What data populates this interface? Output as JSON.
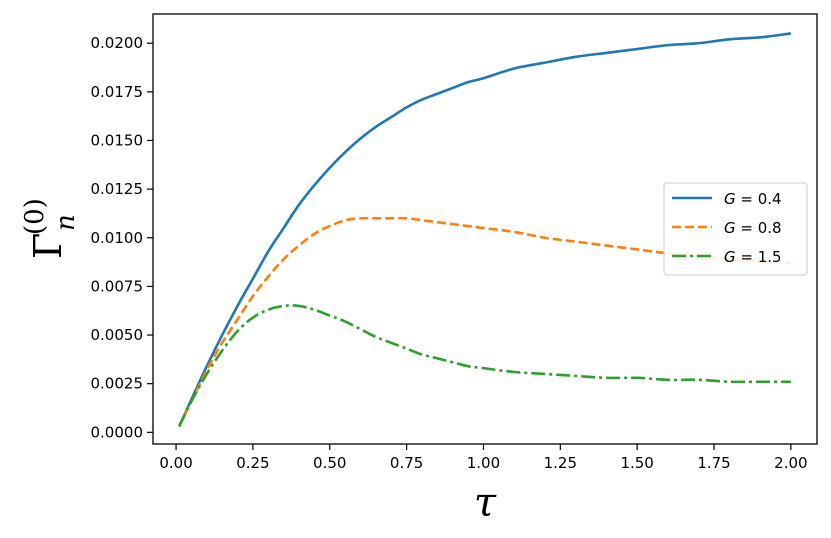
{
  "chart_data": {
    "type": "line",
    "xlabel": "τ",
    "ylabel_main": "Γ",
    "ylabel_sub": "n",
    "ylabel_sup": "(0)",
    "xlim": [
      -0.075,
      2.085
    ],
    "ylim": [
      -0.0006,
      0.0215
    ],
    "xticks": [
      0.0,
      0.25,
      0.5,
      0.75,
      1.0,
      1.25,
      1.5,
      1.75,
      2.0
    ],
    "xtick_labels": [
      "0.00",
      "0.25",
      "0.50",
      "0.75",
      "1.00",
      "1.25",
      "1.50",
      "1.75",
      "2.00"
    ],
    "yticks": [
      0.0,
      0.0025,
      0.005,
      0.0075,
      0.01,
      0.0125,
      0.015,
      0.0175,
      0.02
    ],
    "ytick_labels": [
      "0.0000",
      "0.0025",
      "0.0050",
      "0.0075",
      "0.0100",
      "0.0125",
      "0.0150",
      "0.0175",
      "0.0200"
    ],
    "grid": false,
    "legend_position": "center-right",
    "x": [
      0.01,
      0.05,
      0.1,
      0.15,
      0.2,
      0.25,
      0.3,
      0.35,
      0.4,
      0.45,
      0.5,
      0.55,
      0.6,
      0.65,
      0.7,
      0.75,
      0.8,
      0.85,
      0.9,
      0.95,
      1.0,
      1.1,
      1.2,
      1.3,
      1.4,
      1.5,
      1.6,
      1.7,
      1.8,
      1.9,
      2.0
    ],
    "series": [
      {
        "name": "G = 0.4",
        "legend_var": "G",
        "legend_value": "= 0.4",
        "color": "#1f77b4",
        "dash": "solid",
        "values": [
          0.0003,
          0.0017,
          0.0034,
          0.005,
          0.0065,
          0.0079,
          0.0093,
          0.0105,
          0.0117,
          0.0127,
          0.0136,
          0.0144,
          0.0151,
          0.0157,
          0.0162,
          0.0167,
          0.0171,
          0.0174,
          0.0177,
          0.018,
          0.0182,
          0.0187,
          0.019,
          0.0193,
          0.0195,
          0.0197,
          0.0199,
          0.02,
          0.0202,
          0.0203,
          0.0205
        ]
      },
      {
        "name": "G = 0.8",
        "legend_var": "G",
        "legend_value": "= 0.8",
        "color": "#ff7f0e",
        "dash": "dashed",
        "values": [
          0.0003,
          0.0016,
          0.0032,
          0.0046,
          0.0058,
          0.007,
          0.008,
          0.0089,
          0.0096,
          0.0102,
          0.0106,
          0.0109,
          0.011,
          0.011,
          0.011,
          0.011,
          0.0109,
          0.0108,
          0.0107,
          0.0106,
          0.0105,
          0.0103,
          0.01,
          0.0098,
          0.0096,
          0.0094,
          0.0092,
          0.0091,
          0.0089,
          0.0088,
          0.0087
        ]
      },
      {
        "name": "G = 1.5",
        "legend_var": "G",
        "legend_value": "= 1.5",
        "color": "#2ca02c",
        "dash": "dashdot",
        "values": [
          0.0003,
          0.0016,
          0.003,
          0.0042,
          0.0052,
          0.0059,
          0.0063,
          0.0065,
          0.0065,
          0.0063,
          0.006,
          0.0057,
          0.0053,
          0.0049,
          0.0046,
          0.0043,
          0.004,
          0.0038,
          0.0036,
          0.0034,
          0.0033,
          0.0031,
          0.003,
          0.0029,
          0.0028,
          0.0028,
          0.0027,
          0.0027,
          0.0026,
          0.0026,
          0.0026
        ]
      }
    ]
  }
}
